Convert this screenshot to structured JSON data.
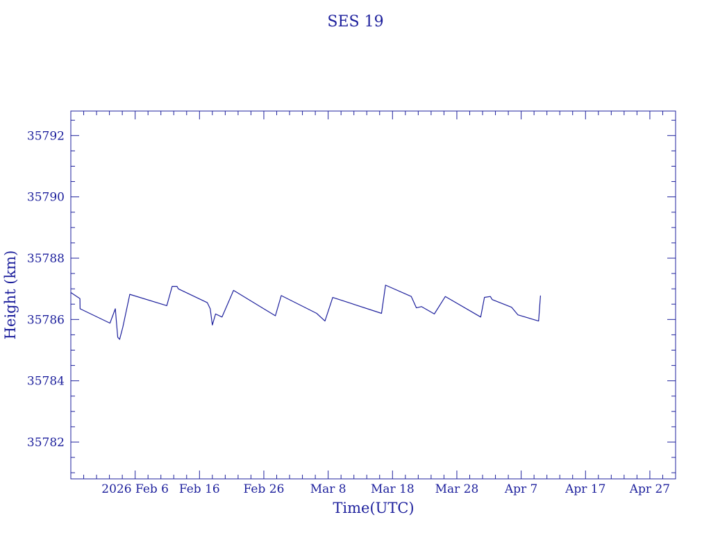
{
  "chart_data": {
    "type": "line",
    "title": "SES 19",
    "xlabel": "Time(UTC)",
    "ylabel": "Height (km)",
    "xlim": [
      "2026-01-27",
      "2026-05-01"
    ],
    "ylim": [
      35780.8,
      35792.8
    ],
    "x_ticks": [
      {
        "date": "2026-02-06",
        "label": "2026 Feb  6"
      },
      {
        "date": "2026-02-16",
        "label": "Feb 16"
      },
      {
        "date": "2026-02-26",
        "label": "Feb 26"
      },
      {
        "date": "2026-03-08",
        "label": "Mar  8"
      },
      {
        "date": "2026-03-18",
        "label": "Mar 18"
      },
      {
        "date": "2026-03-28",
        "label": "Mar 28"
      },
      {
        "date": "2026-04-07",
        "label": "Apr  7"
      },
      {
        "date": "2026-04-17",
        "label": "Apr 17"
      },
      {
        "date": "2026-04-27",
        "label": "Apr 27"
      }
    ],
    "y_ticks": [
      35782,
      35784,
      35786,
      35788,
      35790,
      35792
    ],
    "y_tick_labels": [
      "35782",
      "35784",
      "35786",
      "35788",
      "35790",
      "35792"
    ],
    "grid": false,
    "series": [
      {
        "color": "#1c1f9c",
        "points": [
          [
            "2026-01-27",
            35786.88
          ],
          [
            "2026-01-28 10:00",
            35786.68
          ],
          [
            "2026-01-28 10:30",
            35786.35
          ],
          [
            "2026-02-02 02:00",
            35785.88
          ],
          [
            "2026-02-02 22:00",
            35786.35
          ],
          [
            "2026-02-03 07:00",
            35785.42
          ],
          [
            "2026-02-03 14:00",
            35785.35
          ],
          [
            "2026-02-04 02:00",
            35785.75
          ],
          [
            "2026-02-05 04:00",
            35786.82
          ],
          [
            "2026-02-10 22:00",
            35786.45
          ],
          [
            "2026-02-11 18:00",
            35787.08
          ],
          [
            "2026-02-12 12:00",
            35787.08
          ],
          [
            "2026-02-12 17:00",
            35787.0
          ],
          [
            "2026-02-17 05:00",
            35786.55
          ],
          [
            "2026-02-17 16:00",
            35786.35
          ],
          [
            "2026-02-18 00:00",
            35785.82
          ],
          [
            "2026-02-18 12:00",
            35786.18
          ],
          [
            "2026-02-19 12:00",
            35786.08
          ],
          [
            "2026-02-21 07:00",
            35786.95
          ],
          [
            "2026-02-27 19:00",
            35786.12
          ],
          [
            "2026-02-28 17:00",
            35786.78
          ],
          [
            "2026-03-06 05:00",
            35786.2
          ],
          [
            "2026-03-07 12:00",
            35785.95
          ],
          [
            "2026-03-08 17:00",
            35786.72
          ],
          [
            "2026-03-16 07:00",
            35786.2
          ],
          [
            "2026-03-16 22:00",
            35787.12
          ],
          [
            "2026-03-20 22:00",
            35786.75
          ],
          [
            "2026-03-21 17:00",
            35786.38
          ],
          [
            "2026-03-22 12:00",
            35786.42
          ],
          [
            "2026-03-24 12:00",
            35786.18
          ],
          [
            "2026-03-26 05:00",
            35786.75
          ],
          [
            "2026-03-31 17:00",
            35786.08
          ],
          [
            "2026-04-01 07:00",
            35786.72
          ],
          [
            "2026-04-02 05:00",
            35786.75
          ],
          [
            "2026-04-02 12:00",
            35786.65
          ],
          [
            "2026-04-05 12:00",
            35786.4
          ],
          [
            "2026-04-06 12:00",
            35786.15
          ],
          [
            "2026-04-09 17:00",
            35785.95
          ],
          [
            "2026-04-10 00:00",
            35786.78
          ]
        ]
      }
    ]
  }
}
